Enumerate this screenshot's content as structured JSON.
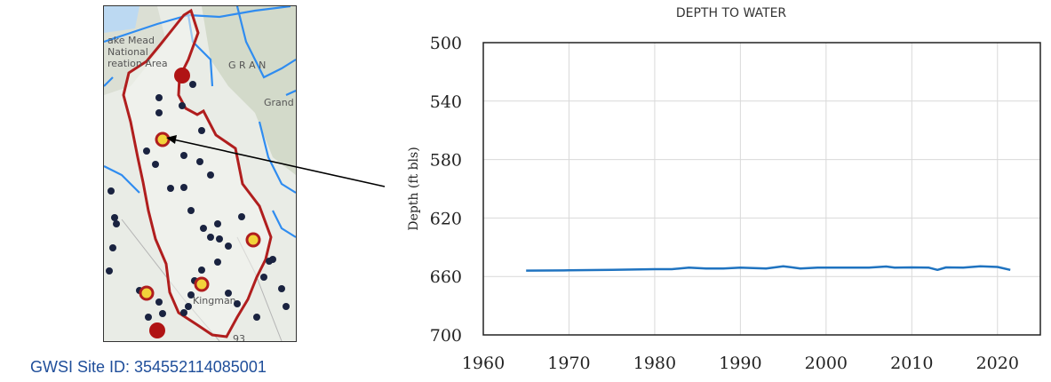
{
  "map": {
    "labels": {
      "lake_mead_1": "ake Mead",
      "lake_mead_2": "National",
      "lake_mead_3": "reation Area",
      "grand": "G R A N",
      "grand2": "Grand",
      "kingman": "Kingman",
      "road": "93"
    },
    "colors": {
      "basin_outline": "#b01e1e",
      "rivers": "#2f8cf0",
      "wells": "#1a2340",
      "highlight_well": "#d4a017"
    }
  },
  "site_id_label": "GWSI Site ID: 354552114085001",
  "chart_data": {
    "type": "line",
    "title": "DEPTH TO WATER",
    "xlabel": "",
    "ylabel": "Depth (ft bls)",
    "xlim": [
      1960,
      2025
    ],
    "ylim": [
      700,
      500
    ],
    "y_inverted": true,
    "x_ticks": [
      1960,
      1970,
      1980,
      1990,
      2000,
      2010,
      2020
    ],
    "y_ticks": [
      500,
      540,
      580,
      620,
      660,
      700
    ],
    "grid": true,
    "series": [
      {
        "color": "#1f73c0",
        "x": [
          1965,
          1970,
          1975,
          1980,
          1982,
          1984,
          1986,
          1988,
          1990,
          1993,
          1995,
          1997,
          1999,
          2001,
          2003,
          2005,
          2007,
          2008,
          2010,
          2012,
          2013,
          2014,
          2016,
          2018,
          2020,
          2021.5
        ],
        "y": [
          656,
          655.8,
          655.5,
          655,
          655,
          654,
          654.5,
          654.5,
          654,
          654.5,
          653,
          654.5,
          654,
          654,
          654,
          654,
          653.2,
          654,
          653.8,
          654,
          655.5,
          653.8,
          654,
          653,
          653.5,
          655.5
        ]
      }
    ]
  }
}
